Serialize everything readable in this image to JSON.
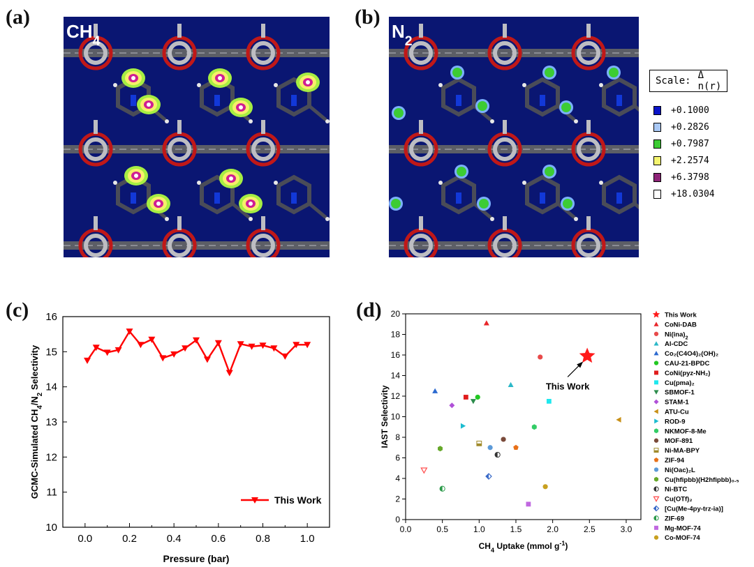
{
  "panels": {
    "a": {
      "label": "(a)",
      "species": "CH",
      "species_sub": "4"
    },
    "b": {
      "label": "(b)",
      "species": "N",
      "species_sub": "2"
    },
    "c": {
      "label": "(c)"
    },
    "d": {
      "label": "(d)"
    }
  },
  "colors": {
    "map_bg": "#0a1672",
    "framework": "#5c5e66",
    "oxygen": "#c01818",
    "metal": "#bdbdc2",
    "nitrogen": "#1238d8",
    "series_red": "#ff0000"
  },
  "scale": {
    "title": "Scale:",
    "symbol": "Δ n(r)",
    "entries": [
      {
        "value": "+0.1000",
        "color": "#0a14c8"
      },
      {
        "value": "+0.2826",
        "color": "#a9c8f5"
      },
      {
        "value": "+0.7987",
        "color": "#3ccc34"
      },
      {
        "value": "+2.2574",
        "color": "#f5f570"
      },
      {
        "value": "+6.3798",
        "color": "#8e2478"
      },
      {
        "value": "+18.0304",
        "color": "#ffffff"
      }
    ]
  },
  "chart_data": [
    {
      "type": "line",
      "title": "",
      "xlabel": "Pressure (bar)",
      "ylabel_parts": [
        "GCMC-Simulated CH",
        "4",
        "/N",
        "2",
        " Selectivity"
      ],
      "xlim": [
        -0.1,
        1.1
      ],
      "ylim": [
        10,
        16
      ],
      "xticks": [
        "0.0",
        "0.2",
        "0.4",
        "0.6",
        "0.8",
        "1.0"
      ],
      "yticks": [
        "10",
        "11",
        "12",
        "13",
        "14",
        "15",
        "16"
      ],
      "legend_position": "bottom-right",
      "series": [
        {
          "name": "This Work",
          "marker": "triangle-down",
          "color": "#ff0000",
          "x": [
            0.01,
            0.05,
            0.1,
            0.15,
            0.2,
            0.25,
            0.3,
            0.35,
            0.4,
            0.45,
            0.5,
            0.55,
            0.6,
            0.65,
            0.7,
            0.75,
            0.8,
            0.85,
            0.9,
            0.95,
            1.0
          ],
          "y": [
            14.75,
            15.12,
            14.98,
            15.05,
            15.58,
            15.2,
            15.35,
            14.82,
            14.93,
            15.1,
            15.33,
            14.78,
            15.25,
            14.4,
            15.22,
            15.15,
            15.18,
            15.1,
            14.87,
            15.2,
            15.2
          ]
        }
      ]
    },
    {
      "type": "scatter",
      "title": "",
      "xlabel_parts": [
        "CH",
        "4",
        " Uptake (mmol g",
        "-1",
        ")"
      ],
      "ylabel": "IAST Selectivity",
      "xlim": [
        0,
        3.2
      ],
      "ylim": [
        0,
        20
      ],
      "xticks": [
        "0.0",
        "0.5",
        "1.0",
        "1.5",
        "2.0",
        "2.5",
        "3.0"
      ],
      "yticks": [
        "0",
        "2",
        "4",
        "6",
        "8",
        "10",
        "12",
        "14",
        "16",
        "18",
        "20"
      ],
      "annotation": "This Work",
      "legend_position": "outside-right",
      "points": [
        {
          "label": "This Work",
          "x": 2.47,
          "y": 15.9,
          "marker": "star",
          "color": "#ff1a1a"
        },
        {
          "label": "CoNi-DAB",
          "x": 1.1,
          "y": 19.1,
          "marker": "triangle-up",
          "color": "#e8262a"
        },
        {
          "label": "Ni(ina)",
          "sub": "2",
          "x": 1.83,
          "y": 15.8,
          "marker": "circle",
          "color": "#e84a4a"
        },
        {
          "label": "Al-CDC",
          "x": 1.43,
          "y": 13.1,
          "marker": "triangle-up",
          "color": "#2cb8c8"
        },
        {
          "label": "Co₂(C4O4)₂(OH)₂",
          "x": 0.4,
          "y": 12.5,
          "marker": "triangle-up",
          "color": "#2c6ad0"
        },
        {
          "label": "CAU-21-BPDC",
          "x": 0.98,
          "y": 11.9,
          "marker": "circle",
          "color": "#22c822"
        },
        {
          "label": "CoNi(pyz-NH₂)",
          "x": 0.82,
          "y": 11.9,
          "marker": "square",
          "color": "#e01c1c"
        },
        {
          "label": "Cu(pma)₂",
          "x": 1.95,
          "y": 11.5,
          "marker": "square",
          "color": "#1ee8ee"
        },
        {
          "label": "SBMOF-1",
          "x": 0.92,
          "y": 11.5,
          "marker": "triangle-down",
          "color": "#2c8c4c"
        },
        {
          "label": "STAM-1",
          "x": 0.63,
          "y": 11.1,
          "marker": "diamond",
          "color": "#b050d8"
        },
        {
          "label": "ATU-Cu",
          "x": 2.9,
          "y": 9.7,
          "marker": "triangle-left",
          "color": "#c89018"
        },
        {
          "label": "ROD-9",
          "x": 0.78,
          "y": 9.1,
          "marker": "triangle-right",
          "color": "#1cbcd0"
        },
        {
          "label": "NKMOF-8-Me",
          "x": 1.75,
          "y": 9.0,
          "marker": "hexagon",
          "color": "#33cc66"
        },
        {
          "label": "MOF-891",
          "x": 1.33,
          "y": 7.8,
          "marker": "circle",
          "color": "#7a4a3a"
        },
        {
          "label": "Ni-MA-BPY",
          "x": 1.0,
          "y": 7.4,
          "marker": "square-half",
          "color": "#a08a2a"
        },
        {
          "label": "ZIF-94",
          "x": 1.5,
          "y": 7.0,
          "marker": "pentagon",
          "color": "#e87018"
        },
        {
          "label": "Ni(Oac)₂L",
          "x": 1.15,
          "y": 7.0,
          "marker": "circle",
          "color": "#5c9ad8"
        },
        {
          "label": "Cu(hfipbb)(H2hfipbb)₀.₅",
          "x": 0.47,
          "y": 6.9,
          "marker": "hexagon",
          "color": "#66a82a"
        },
        {
          "label": "Ni-BTC",
          "x": 1.25,
          "y": 6.3,
          "marker": "circle-half",
          "color": "#333333"
        },
        {
          "label": "Cu(OTf)₂",
          "x": 0.25,
          "y": 4.8,
          "marker": "triangle-down-open",
          "color": "#ff5555"
        },
        {
          "label": "[Cu(Me-4py-trz-ia)]",
          "x": 1.13,
          "y": 4.2,
          "marker": "diamond-half",
          "color": "#3a6ac8"
        },
        {
          "label": "ZIF-69",
          "x": 0.5,
          "y": 3.0,
          "marker": "circle-half",
          "color": "#2c9a4a"
        },
        {
          "label": "Mg-MOF-74",
          "x": 1.67,
          "y": 1.5,
          "marker": "square",
          "color": "#c068e0"
        },
        {
          "label": "Co-MOF-74",
          "x": 1.9,
          "y": 3.2,
          "marker": "circle",
          "color": "#c8a020"
        }
      ]
    }
  ]
}
